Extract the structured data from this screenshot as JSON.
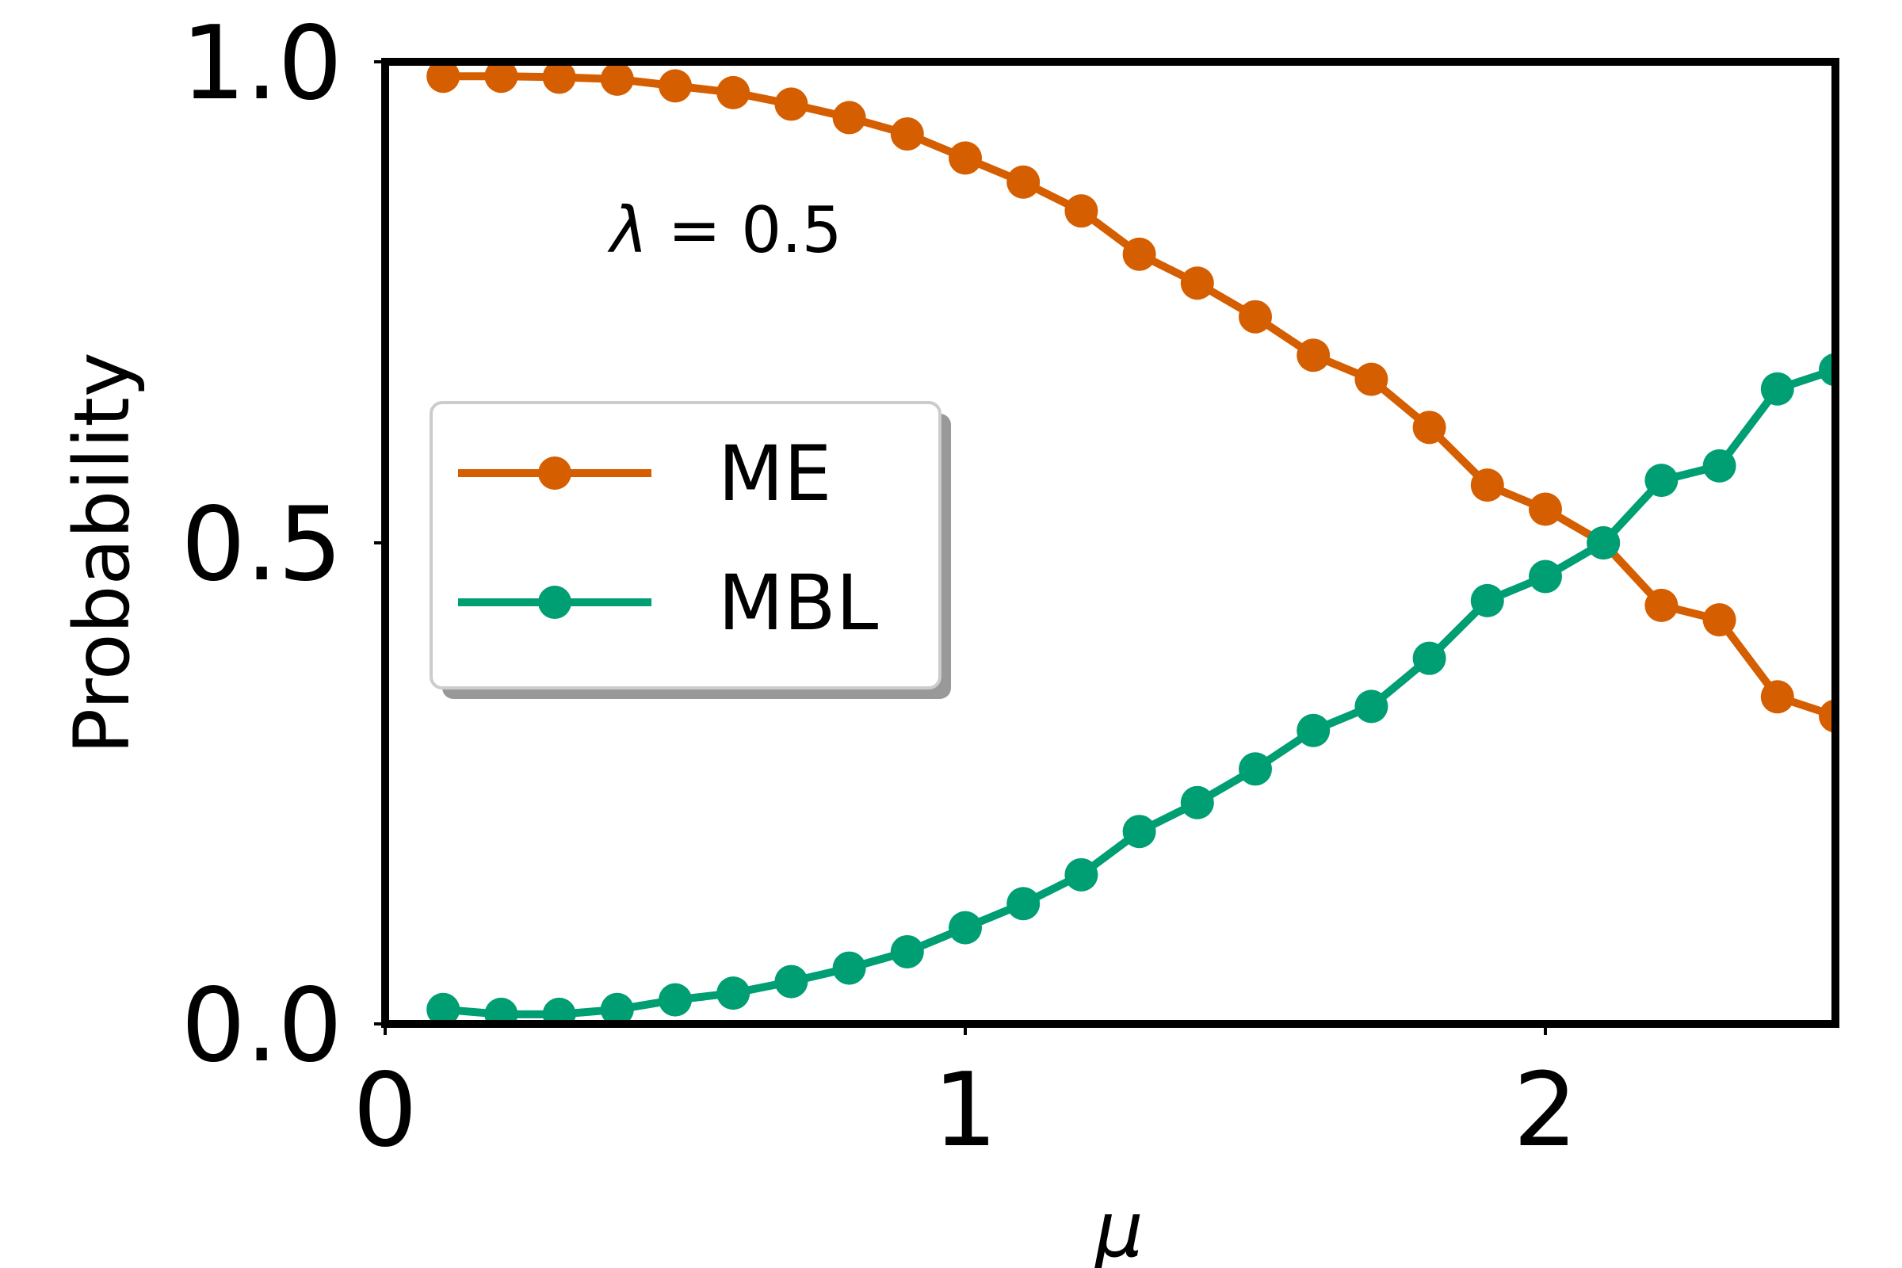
{
  "chart_data": {
    "type": "line",
    "xlabel": "μ",
    "ylabel": "Probability",
    "xlim": [
      0,
      2.5
    ],
    "ylim": [
      0,
      1.0
    ],
    "xticks": [
      0,
      1,
      2
    ],
    "xtick_labels": [
      "0",
      "1",
      "2"
    ],
    "yticks": [
      0,
      0.5,
      1.0
    ],
    "ytick_labels": [
      "0.0",
      "0.5",
      "1.0"
    ],
    "grid": false,
    "legend_position": "center-left",
    "annotation": {
      "symbol": "λ",
      "text": " = 0.5"
    },
    "x": [
      0.1,
      0.2,
      0.3,
      0.4,
      0.5,
      0.6,
      0.7,
      0.8,
      0.9,
      1.0,
      1.1,
      1.2,
      1.3,
      1.4,
      1.5,
      1.6,
      1.7,
      1.8,
      1.9,
      2.0,
      2.1,
      2.2,
      2.3,
      2.4,
      2.5
    ],
    "series": [
      {
        "name": "ME",
        "color": "#d55e00",
        "values": [
          0.985,
          0.985,
          0.984,
          0.982,
          0.975,
          0.968,
          0.956,
          0.942,
          0.925,
          0.9,
          0.875,
          0.845,
          0.8,
          0.77,
          0.735,
          0.695,
          0.67,
          0.62,
          0.56,
          0.535,
          0.5,
          0.435,
          0.42,
          0.34,
          0.32
        ]
      },
      {
        "name": "MBL",
        "color": "#009e73",
        "values": [
          0.015,
          0.01,
          0.01,
          0.015,
          0.025,
          0.032,
          0.044,
          0.058,
          0.075,
          0.1,
          0.125,
          0.155,
          0.2,
          0.23,
          0.265,
          0.305,
          0.33,
          0.38,
          0.44,
          0.465,
          0.5,
          0.565,
          0.58,
          0.66,
          0.68
        ]
      }
    ]
  }
}
